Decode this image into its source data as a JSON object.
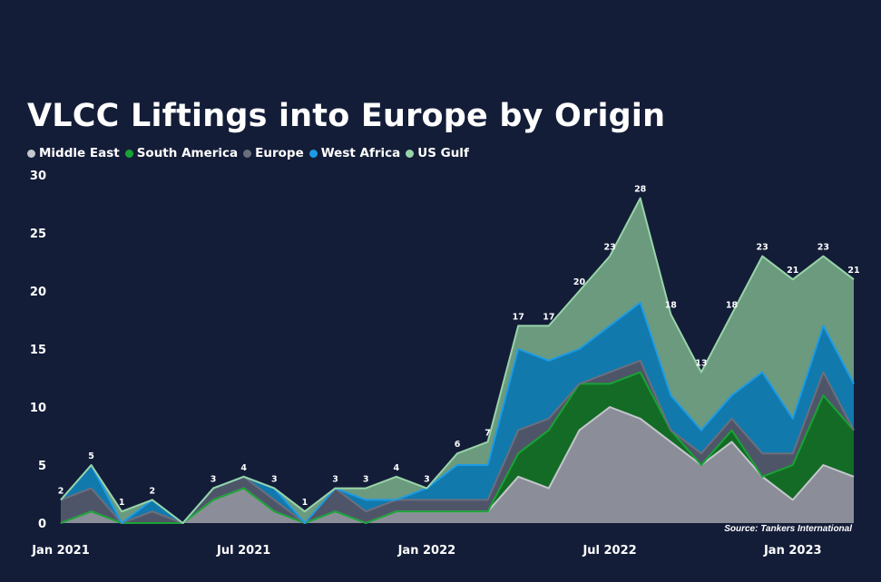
{
  "title": "VLCC Liftings into Europe by Origin",
  "source": "Source: Tankers International",
  "legend": [
    {
      "label": "Middle East",
      "color": "#c4c7cd"
    },
    {
      "label": "South America",
      "color": "#18a335"
    },
    {
      "label": "Europe",
      "color": "#6b6f7d"
    },
    {
      "label": "West Africa",
      "color": "#1c9be6"
    },
    {
      "label": "US Gulf",
      "color": "#98d4a8"
    }
  ],
  "chart_data": {
    "type": "area",
    "stacked": true,
    "title": "VLCC Liftings into Europe by Origin",
    "x": [
      "2021-01",
      "2021-02",
      "2021-03",
      "2021-04",
      "2021-05",
      "2021-06",
      "2021-07",
      "2021-08",
      "2021-09",
      "2021-10",
      "2021-11",
      "2021-12",
      "2022-01",
      "2022-02",
      "2022-03",
      "2022-04",
      "2022-05",
      "2022-06",
      "2022-07",
      "2022-08",
      "2022-09",
      "2022-10",
      "2022-11",
      "2022-12",
      "2023-01",
      "2023-02",
      "2023-03"
    ],
    "x_tick_labels": [
      {
        "x": "2021-01",
        "label": "Jan 2021"
      },
      {
        "x": "2021-07",
        "label": "Jul 2021"
      },
      {
        "x": "2022-01",
        "label": "Jan 2022"
      },
      {
        "x": "2022-07",
        "label": "Jul 2022"
      },
      {
        "x": "2023-01",
        "label": "Jan 2023"
      }
    ],
    "x_tick_index_offset": [
      0,
      9,
      18,
      27,
      36
    ],
    "monthly_points": [
      "2020-12",
      "2021-01",
      "2021-02",
      "2021-03",
      "2021-04",
      "2021-05",
      "2021-06",
      "2021-07",
      "2021-08",
      "2021-09",
      "2021-10",
      "2021-11",
      "2021-12",
      "2022-01",
      "2022-02",
      "2022-03",
      "2022-04",
      "2022-05",
      "2022-06",
      "2022-07",
      "2022-08",
      "2022-09",
      "2022-10",
      "2022-11",
      "2022-12",
      "2023-01",
      "2023-02",
      "2023-03"
    ],
    "ylim": [
      0,
      30
    ],
    "y_ticks": [
      0,
      5,
      10,
      15,
      20,
      25,
      30
    ],
    "grid": false,
    "legend_position": "top-left",
    "series": [
      {
        "name": "Middle East",
        "color": "#8b8e98",
        "line": "#c4c7cd",
        "values": [
          0,
          1,
          0,
          0,
          0,
          2,
          3,
          1,
          0,
          1,
          0,
          1,
          1,
          1,
          1,
          4,
          3,
          8,
          10,
          9,
          7,
          5,
          7,
          4,
          2,
          5,
          4
        ]
      },
      {
        "name": "South America",
        "color": "#146b26",
        "line": "#18a335",
        "values": [
          0,
          0,
          0,
          0,
          0,
          0,
          0,
          0,
          0,
          0,
          0,
          0,
          0,
          0,
          0,
          2,
          5,
          4,
          2,
          4,
          1,
          0,
          1,
          0,
          3,
          6,
          4
        ]
      },
      {
        "name": "Europe",
        "color": "#4f5568",
        "line": "#6b6f7d",
        "values": [
          2,
          2,
          0,
          1,
          0,
          1,
          1,
          1,
          0,
          2,
          1,
          1,
          1,
          1,
          1,
          2,
          1,
          0,
          1,
          1,
          0,
          1,
          1,
          2,
          1,
          2,
          0
        ]
      },
      {
        "name": "West Africa",
        "color": "#1279ad",
        "line": "#1c9be6",
        "values": [
          0,
          2,
          0,
          1,
          0,
          0,
          0,
          1,
          0,
          0,
          1,
          0,
          1,
          3,
          3,
          7,
          5,
          3,
          4,
          5,
          3,
          2,
          2,
          7,
          3,
          4,
          4
        ]
      },
      {
        "name": "US Gulf",
        "color": "#6b9a7f",
        "line": "#98d4a8",
        "values": [
          0,
          0,
          1,
          0,
          0,
          0,
          0,
          0,
          1,
          0,
          1,
          2,
          0,
          1,
          2,
          2,
          3,
          5,
          6,
          9,
          7,
          5,
          7,
          10,
          12,
          6,
          9
        ]
      }
    ],
    "totals": [
      2,
      5,
      1,
      2,
      0,
      3,
      4,
      3,
      1,
      3,
      3,
      4,
      3,
      6,
      7,
      17,
      17,
      20,
      23,
      28,
      18,
      13,
      18,
      23,
      21,
      23,
      21
    ],
    "total_labels": [
      "2",
      "5",
      "1",
      "2",
      "",
      "3",
      "4",
      "3",
      "1",
      "3",
      "3",
      "4",
      "3",
      "6",
      "7",
      "17",
      "17",
      "20",
      "23",
      "28",
      "18",
      "13",
      "18",
      "23",
      "21",
      "23",
      "21"
    ]
  }
}
